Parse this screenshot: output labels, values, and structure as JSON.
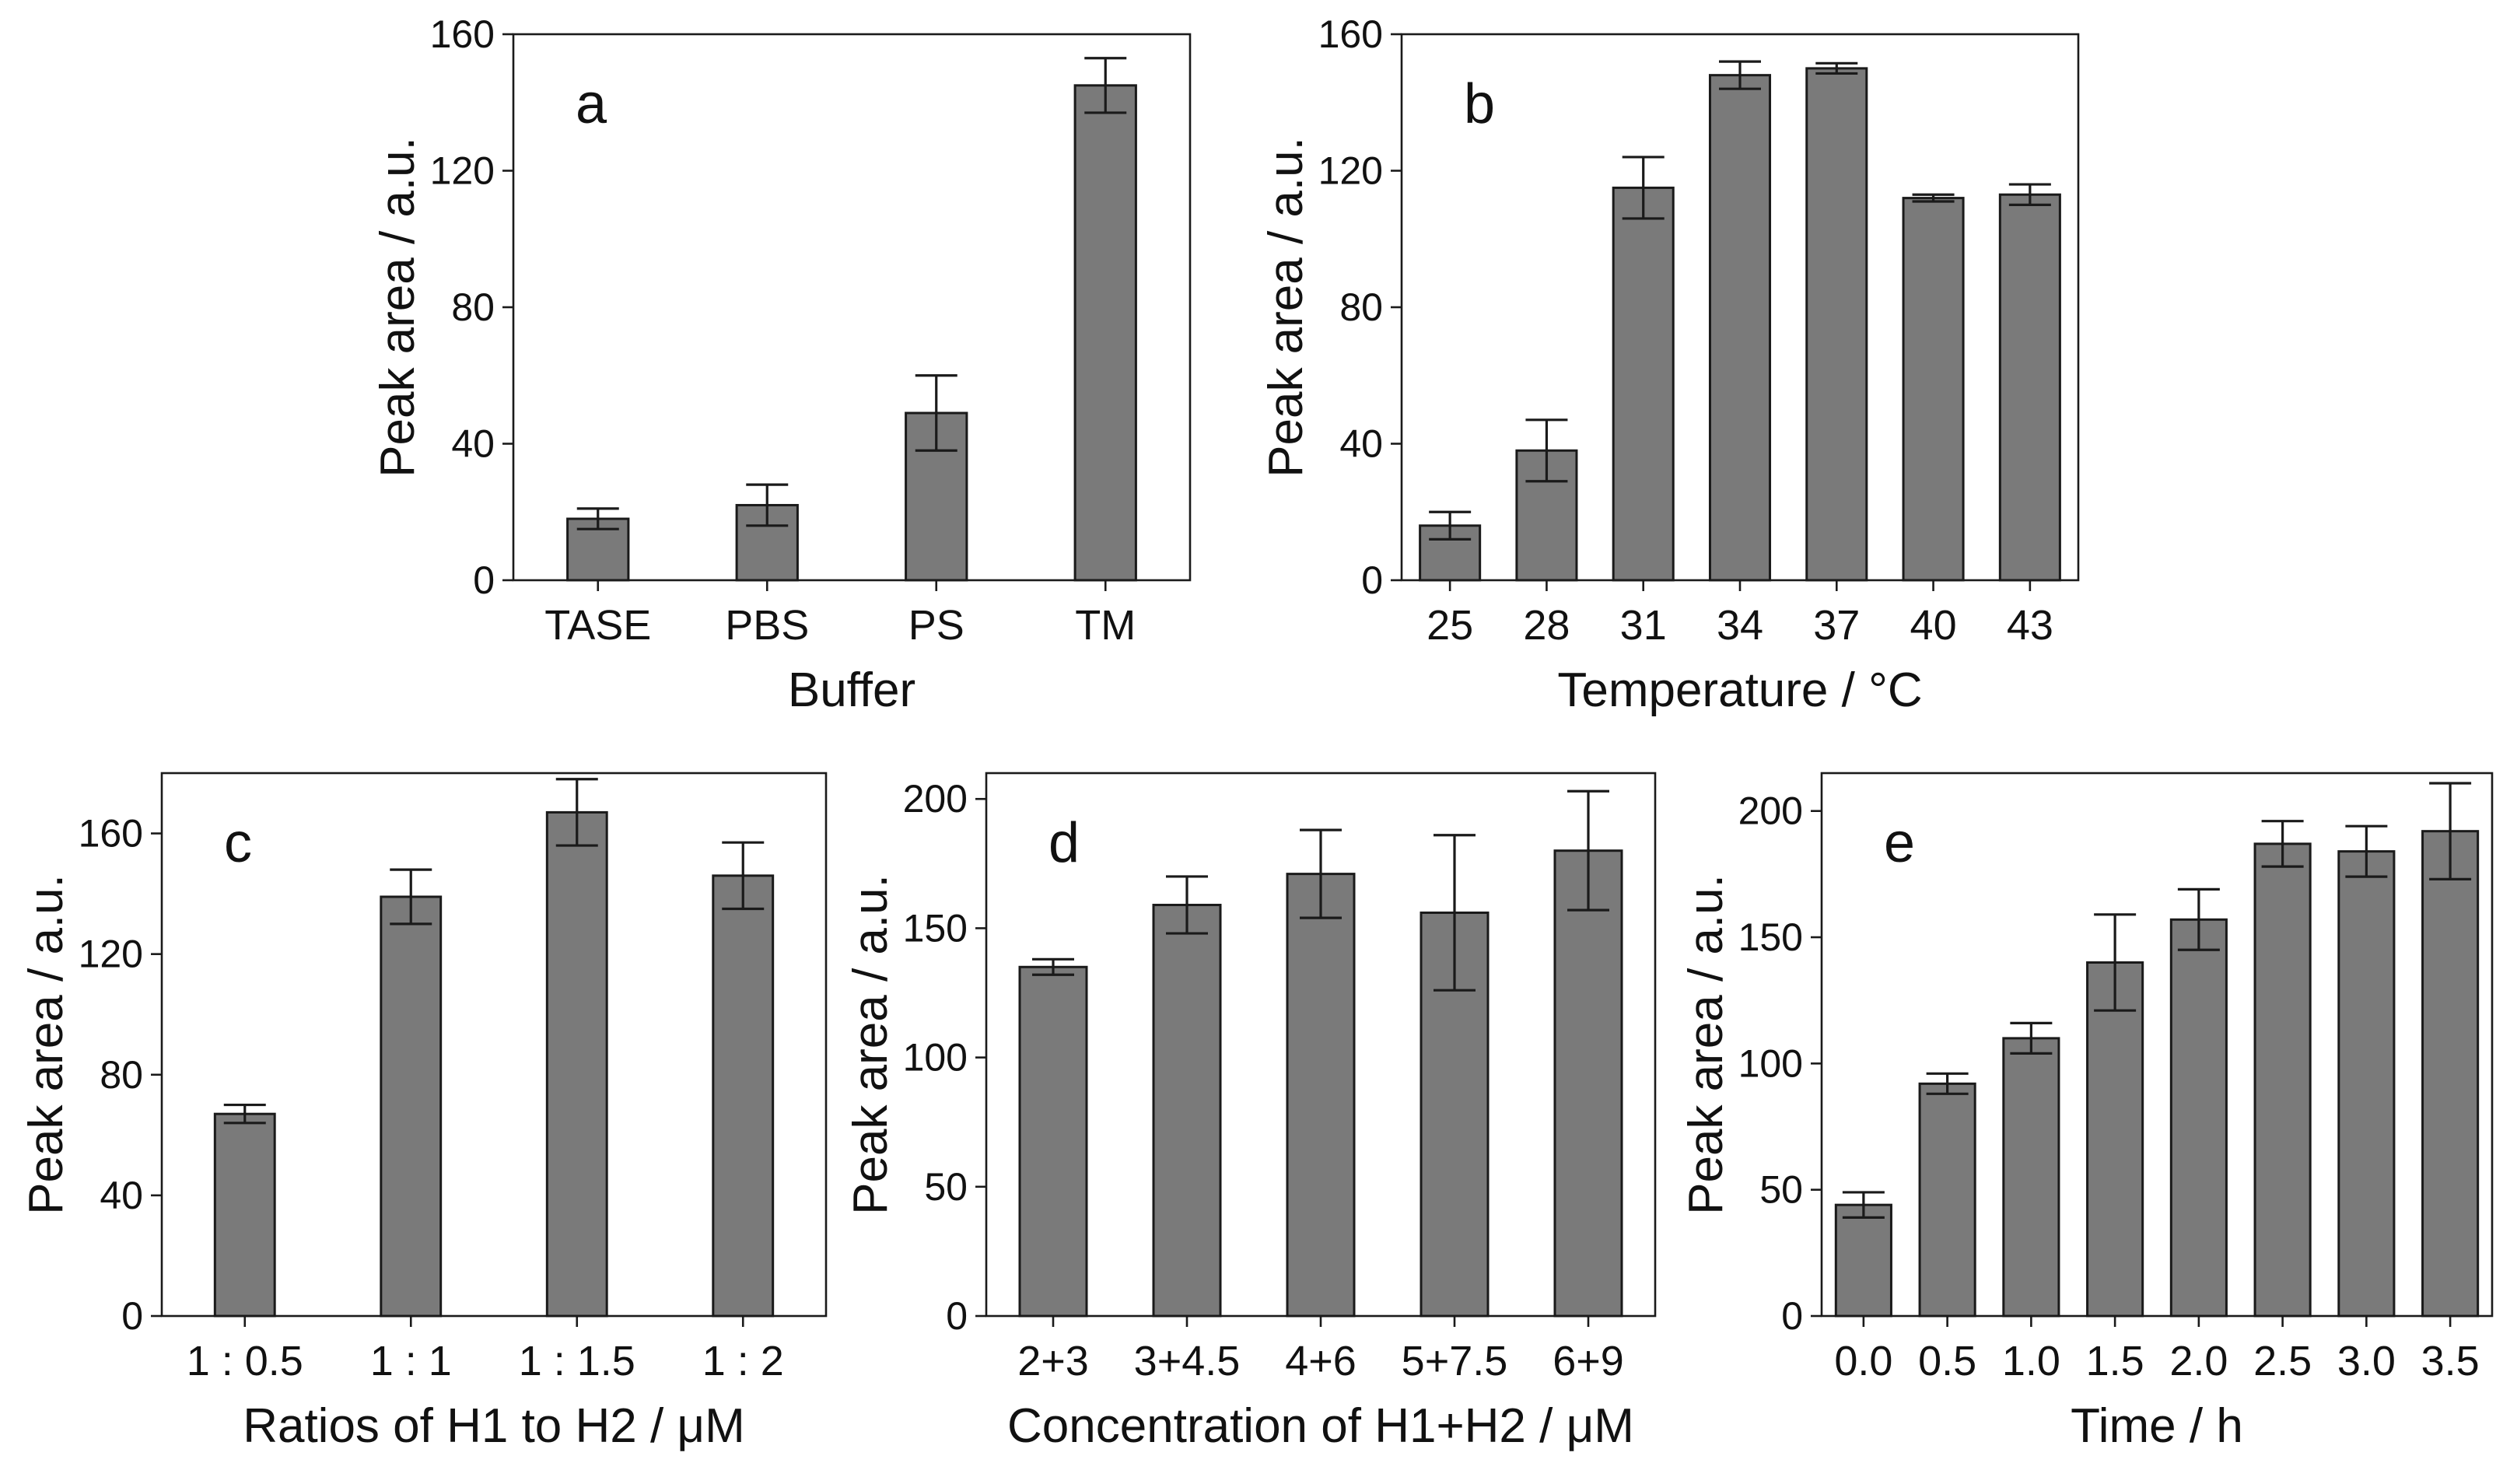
{
  "colors": {
    "bar": "#7a7a7a",
    "axis": "#1a1a1a",
    "background": "#ffffff"
  },
  "chart_data": [
    {
      "type": "bar",
      "panel": "a",
      "categories": [
        "TASE",
        "PBS",
        "PS",
        "TM"
      ],
      "values": [
        18,
        22,
        49,
        145
      ],
      "errors": [
        3,
        6,
        11,
        8
      ],
      "xlabel": "Buffer",
      "ylabel": "Peak area / a.u.",
      "ylim": [
        0,
        160
      ],
      "yticks": [
        0,
        40,
        80,
        120,
        160
      ],
      "legend": "none"
    },
    {
      "type": "bar",
      "panel": "b",
      "categories": [
        "25",
        "28",
        "31",
        "34",
        "37",
        "40",
        "43"
      ],
      "values": [
        16,
        38,
        115,
        148,
        150,
        112,
        113
      ],
      "errors": [
        4,
        9,
        9,
        4,
        1.5,
        1,
        3
      ],
      "xlabel": "Temperature / °C",
      "ylabel": "Peak area / a.u.",
      "ylim": [
        0,
        160
      ],
      "yticks": [
        0,
        40,
        80,
        120,
        160
      ],
      "legend": "none"
    },
    {
      "type": "bar",
      "panel": "c",
      "categories": [
        "1 : 0.5",
        "1 : 1",
        "1 : 1.5",
        "1 : 2"
      ],
      "values": [
        67,
        139,
        167,
        146
      ],
      "errors": [
        3,
        9,
        11,
        11
      ],
      "xlabel": "Ratios of H1 to H2 / μM",
      "ylabel": "Peak area / a.u.",
      "ylim": [
        0,
        180
      ],
      "yticks": [
        0,
        40,
        80,
        120,
        160
      ],
      "legend": "none"
    },
    {
      "type": "bar",
      "panel": "d",
      "categories": [
        "2+3",
        "3+4.5",
        "4+6",
        "5+7.5",
        "6+9"
      ],
      "values": [
        135,
        159,
        171,
        156,
        180
      ],
      "errors": [
        3,
        11,
        17,
        30,
        23
      ],
      "xlabel": "Concentration of H1+H2 / μM",
      "ylabel": "Peak area / a.u.",
      "ylim": [
        0,
        210
      ],
      "yticks": [
        0,
        50,
        100,
        150,
        200
      ],
      "legend": "none"
    },
    {
      "type": "bar",
      "panel": "e",
      "categories": [
        "0.0",
        "0.5",
        "1.0",
        "1.5",
        "2.0",
        "2.5",
        "3.0",
        "3.5"
      ],
      "values": [
        44,
        92,
        110,
        140,
        157,
        187,
        184,
        192
      ],
      "errors": [
        5,
        4,
        6,
        19,
        12,
        9,
        10,
        19
      ],
      "xlabel": "Time / h",
      "ylabel": "Peak area / a.u.",
      "ylim": [
        0,
        215
      ],
      "yticks": [
        0,
        50,
        100,
        150,
        200
      ],
      "legend": "none"
    }
  ]
}
